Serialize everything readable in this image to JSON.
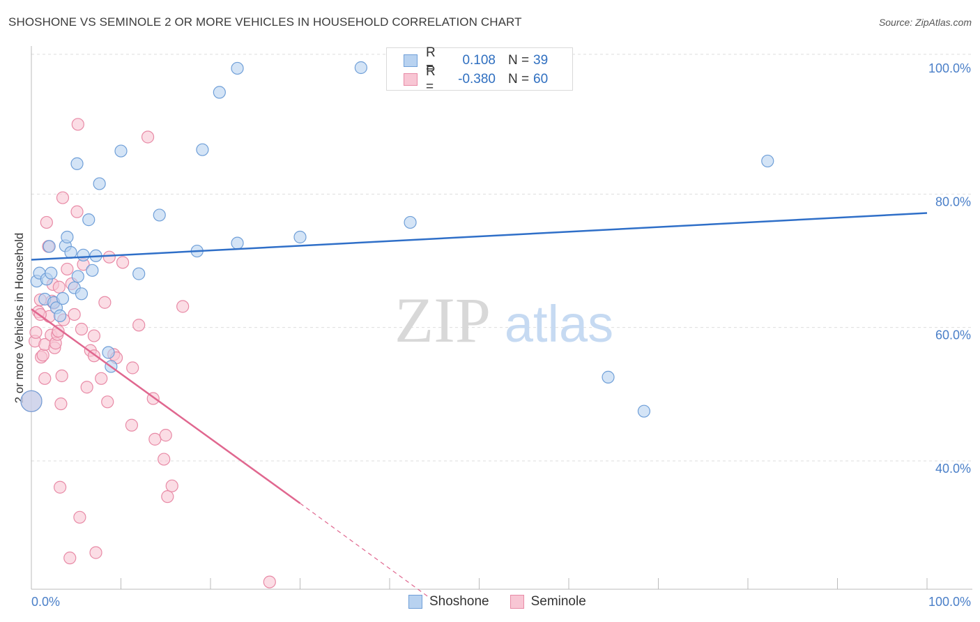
{
  "title": "SHOSHONE VS SEMINOLE 2 OR MORE VEHICLES IN HOUSEHOLD CORRELATION CHART",
  "source": "Source: ZipAtlas.com",
  "watermark": {
    "zip": "ZIP",
    "atlas": "atlas"
  },
  "legend": {
    "r_label": "R =",
    "n_label": "N =",
    "rows": [
      {
        "r": "0.108",
        "n": "39"
      },
      {
        "r": "-0.380",
        "n": "60"
      }
    ]
  },
  "colors": {
    "shoshone_fill": "#b8d2f0",
    "shoshone_stroke": "#6f9fd8",
    "shoshone_line": "#2f6fc8",
    "seminole_fill": "#f8c6d4",
    "seminole_stroke": "#e88aa6",
    "seminole_line": "#e0678f",
    "axis_label": "#4a7fc8",
    "grid": "#dddddd"
  },
  "chart_data": {
    "type": "scatter",
    "title": "SHOSHONE VS SEMINOLE 2 OR MORE VEHICLES IN HOUSEHOLD CORRELATION CHART",
    "xlabel": "",
    "ylabel": "2 or more Vehicles in Household",
    "xlim": [
      0,
      100
    ],
    "ylim": [
      20,
      102
    ],
    "x_tick_labels": [
      "0.0%",
      "100.0%"
    ],
    "y_ticks": [
      100,
      80,
      60,
      40
    ],
    "y_tick_labels": [
      "100.0%",
      "80.0%",
      "60.0%",
      "40.0%"
    ],
    "series": [
      {
        "name": "Shoshone",
        "r": 0.108,
        "n": 39,
        "trend": {
          "x0": 0,
          "y0": 71.2,
          "x1": 100,
          "y1": 78.2
        },
        "points": [
          {
            "x": 0,
            "y": 50.0
          },
          {
            "x": 0.6,
            "y": 68.0
          },
          {
            "x": 0.9,
            "y": 69.2
          },
          {
            "x": 1.5,
            "y": 65.3
          },
          {
            "x": 1.7,
            "y": 68.3
          },
          {
            "x": 2.0,
            "y": 73.2
          },
          {
            "x": 2.2,
            "y": 69.2
          },
          {
            "x": 2.5,
            "y": 64.8
          },
          {
            "x": 2.8,
            "y": 64.0
          },
          {
            "x": 3.2,
            "y": 62.8
          },
          {
            "x": 3.5,
            "y": 65.4
          },
          {
            "x": 3.8,
            "y": 73.3
          },
          {
            "x": 4.0,
            "y": 74.6
          },
          {
            "x": 4.4,
            "y": 72.3
          },
          {
            "x": 4.8,
            "y": 67.0
          },
          {
            "x": 5.2,
            "y": 68.7
          },
          {
            "x": 5.6,
            "y": 66.1
          },
          {
            "x": 5.8,
            "y": 71.9
          },
          {
            "x": 6.4,
            "y": 77.2
          },
          {
            "x": 6.8,
            "y": 69.6
          },
          {
            "x": 7.2,
            "y": 71.8
          },
          {
            "x": 5.1,
            "y": 85.6
          },
          {
            "x": 7.6,
            "y": 82.6
          },
          {
            "x": 8.6,
            "y": 57.3
          },
          {
            "x": 8.9,
            "y": 55.2
          },
          {
            "x": 10.0,
            "y": 87.5
          },
          {
            "x": 12.0,
            "y": 69.1
          },
          {
            "x": 14.3,
            "y": 77.9
          },
          {
            "x": 18.5,
            "y": 72.5
          },
          {
            "x": 19.1,
            "y": 87.7
          },
          {
            "x": 21.0,
            "y": 96.3
          },
          {
            "x": 23.0,
            "y": 73.7
          },
          {
            "x": 23.0,
            "y": 99.9
          },
          {
            "x": 30.0,
            "y": 74.6
          },
          {
            "x": 36.8,
            "y": 100.0
          },
          {
            "x": 42.3,
            "y": 76.8
          },
          {
            "x": 64.4,
            "y": 53.6
          },
          {
            "x": 68.4,
            "y": 48.5
          },
          {
            "x": 82.2,
            "y": 86.0
          }
        ]
      },
      {
        "name": "Seminole",
        "r": -0.38,
        "n": 60,
        "trend": {
          "x0": 0,
          "y0": 63.8,
          "x1": 30,
          "y1": 34.7
        },
        "trend_dashed": {
          "x0": 30,
          "y0": 34.7,
          "x1": 44.5,
          "y1": 20.5
        },
        "points": [
          {
            "x": 0,
            "y": 50.0
          },
          {
            "x": 0.4,
            "y": 59.0
          },
          {
            "x": 0.5,
            "y": 60.3
          },
          {
            "x": 0.8,
            "y": 63.4
          },
          {
            "x": 1.0,
            "y": 65.2
          },
          {
            "x": 1.1,
            "y": 56.6
          },
          {
            "x": 1.3,
            "y": 56.9
          },
          {
            "x": 1.5,
            "y": 58.5
          },
          {
            "x": 1.5,
            "y": 53.4
          },
          {
            "x": 1.7,
            "y": 76.8
          },
          {
            "x": 1.9,
            "y": 73.2
          },
          {
            "x": 2.0,
            "y": 62.7
          },
          {
            "x": 2.2,
            "y": 59.9
          },
          {
            "x": 2.4,
            "y": 67.5
          },
          {
            "x": 2.5,
            "y": 64.7
          },
          {
            "x": 2.6,
            "y": 58.0
          },
          {
            "x": 2.7,
            "y": 58.7
          },
          {
            "x": 2.9,
            "y": 60.0
          },
          {
            "x": 3.1,
            "y": 67.1
          },
          {
            "x": 3.2,
            "y": 37.1
          },
          {
            "x": 3.3,
            "y": 49.6
          },
          {
            "x": 3.4,
            "y": 53.8
          },
          {
            "x": 3.5,
            "y": 80.5
          },
          {
            "x": 3.6,
            "y": 62.2
          },
          {
            "x": 4.0,
            "y": 69.8
          },
          {
            "x": 4.3,
            "y": 26.5
          },
          {
            "x": 4.5,
            "y": 67.6
          },
          {
            "x": 4.8,
            "y": 63.0
          },
          {
            "x": 5.1,
            "y": 78.4
          },
          {
            "x": 5.2,
            "y": 91.5
          },
          {
            "x": 5.4,
            "y": 32.6
          },
          {
            "x": 5.6,
            "y": 60.8
          },
          {
            "x": 5.8,
            "y": 70.5
          },
          {
            "x": 6.2,
            "y": 52.1
          },
          {
            "x": 6.6,
            "y": 57.6
          },
          {
            "x": 7.0,
            "y": 59.8
          },
          {
            "x": 7.2,
            "y": 27.3
          },
          {
            "x": 7.0,
            "y": 56.8
          },
          {
            "x": 7.8,
            "y": 53.4
          },
          {
            "x": 8.2,
            "y": 64.8
          },
          {
            "x": 8.5,
            "y": 49.9
          },
          {
            "x": 8.7,
            "y": 71.6
          },
          {
            "x": 9.2,
            "y": 57.0
          },
          {
            "x": 9.5,
            "y": 56.5
          },
          {
            "x": 10.2,
            "y": 70.8
          },
          {
            "x": 11.2,
            "y": 46.4
          },
          {
            "x": 11.3,
            "y": 55.0
          },
          {
            "x": 12.0,
            "y": 61.4
          },
          {
            "x": 13.0,
            "y": 89.6
          },
          {
            "x": 13.6,
            "y": 50.4
          },
          {
            "x": 13.8,
            "y": 44.3
          },
          {
            "x": 14.8,
            "y": 41.3
          },
          {
            "x": 15.0,
            "y": 44.9
          },
          {
            "x": 15.2,
            "y": 35.7
          },
          {
            "x": 15.7,
            "y": 37.3
          },
          {
            "x": 16.9,
            "y": 64.2
          },
          {
            "x": 26.6,
            "y": 22.9
          },
          {
            "x": 1.0,
            "y": 63.0
          },
          {
            "x": 2.3,
            "y": 65.0
          },
          {
            "x": 3.0,
            "y": 60.5
          }
        ]
      }
    ]
  }
}
